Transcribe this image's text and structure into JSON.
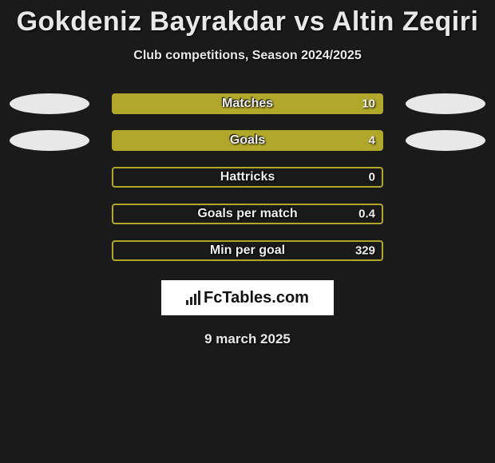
{
  "title": "Gokdeniz Bayrakdar vs Altin Zeqiri",
  "subtitle": "Club competitions, Season 2024/2025",
  "date": "9 march 2025",
  "logo_text": "FcTables.com",
  "colors": {
    "bar_fill": "#b0a72b",
    "bar_border": "#b0a72b",
    "background": "#1a1a1a",
    "ellipse": "#e8e8e8"
  },
  "rows": [
    {
      "label": "Matches",
      "value_right": "10",
      "left_pct": 0,
      "right_pct": 100,
      "show_left_ellipse": true,
      "show_right_ellipse": true
    },
    {
      "label": "Goals",
      "value_right": "4",
      "left_pct": 0,
      "right_pct": 100,
      "show_left_ellipse": true,
      "show_right_ellipse": true
    },
    {
      "label": "Hattricks",
      "value_right": "0",
      "left_pct": 0,
      "right_pct": 0,
      "show_left_ellipse": false,
      "show_right_ellipse": false
    },
    {
      "label": "Goals per match",
      "value_right": "0.4",
      "left_pct": 0,
      "right_pct": 0,
      "show_left_ellipse": false,
      "show_right_ellipse": false
    },
    {
      "label": "Min per goal",
      "value_right": "329",
      "left_pct": 0,
      "right_pct": 0,
      "show_left_ellipse": false,
      "show_right_ellipse": false
    }
  ]
}
